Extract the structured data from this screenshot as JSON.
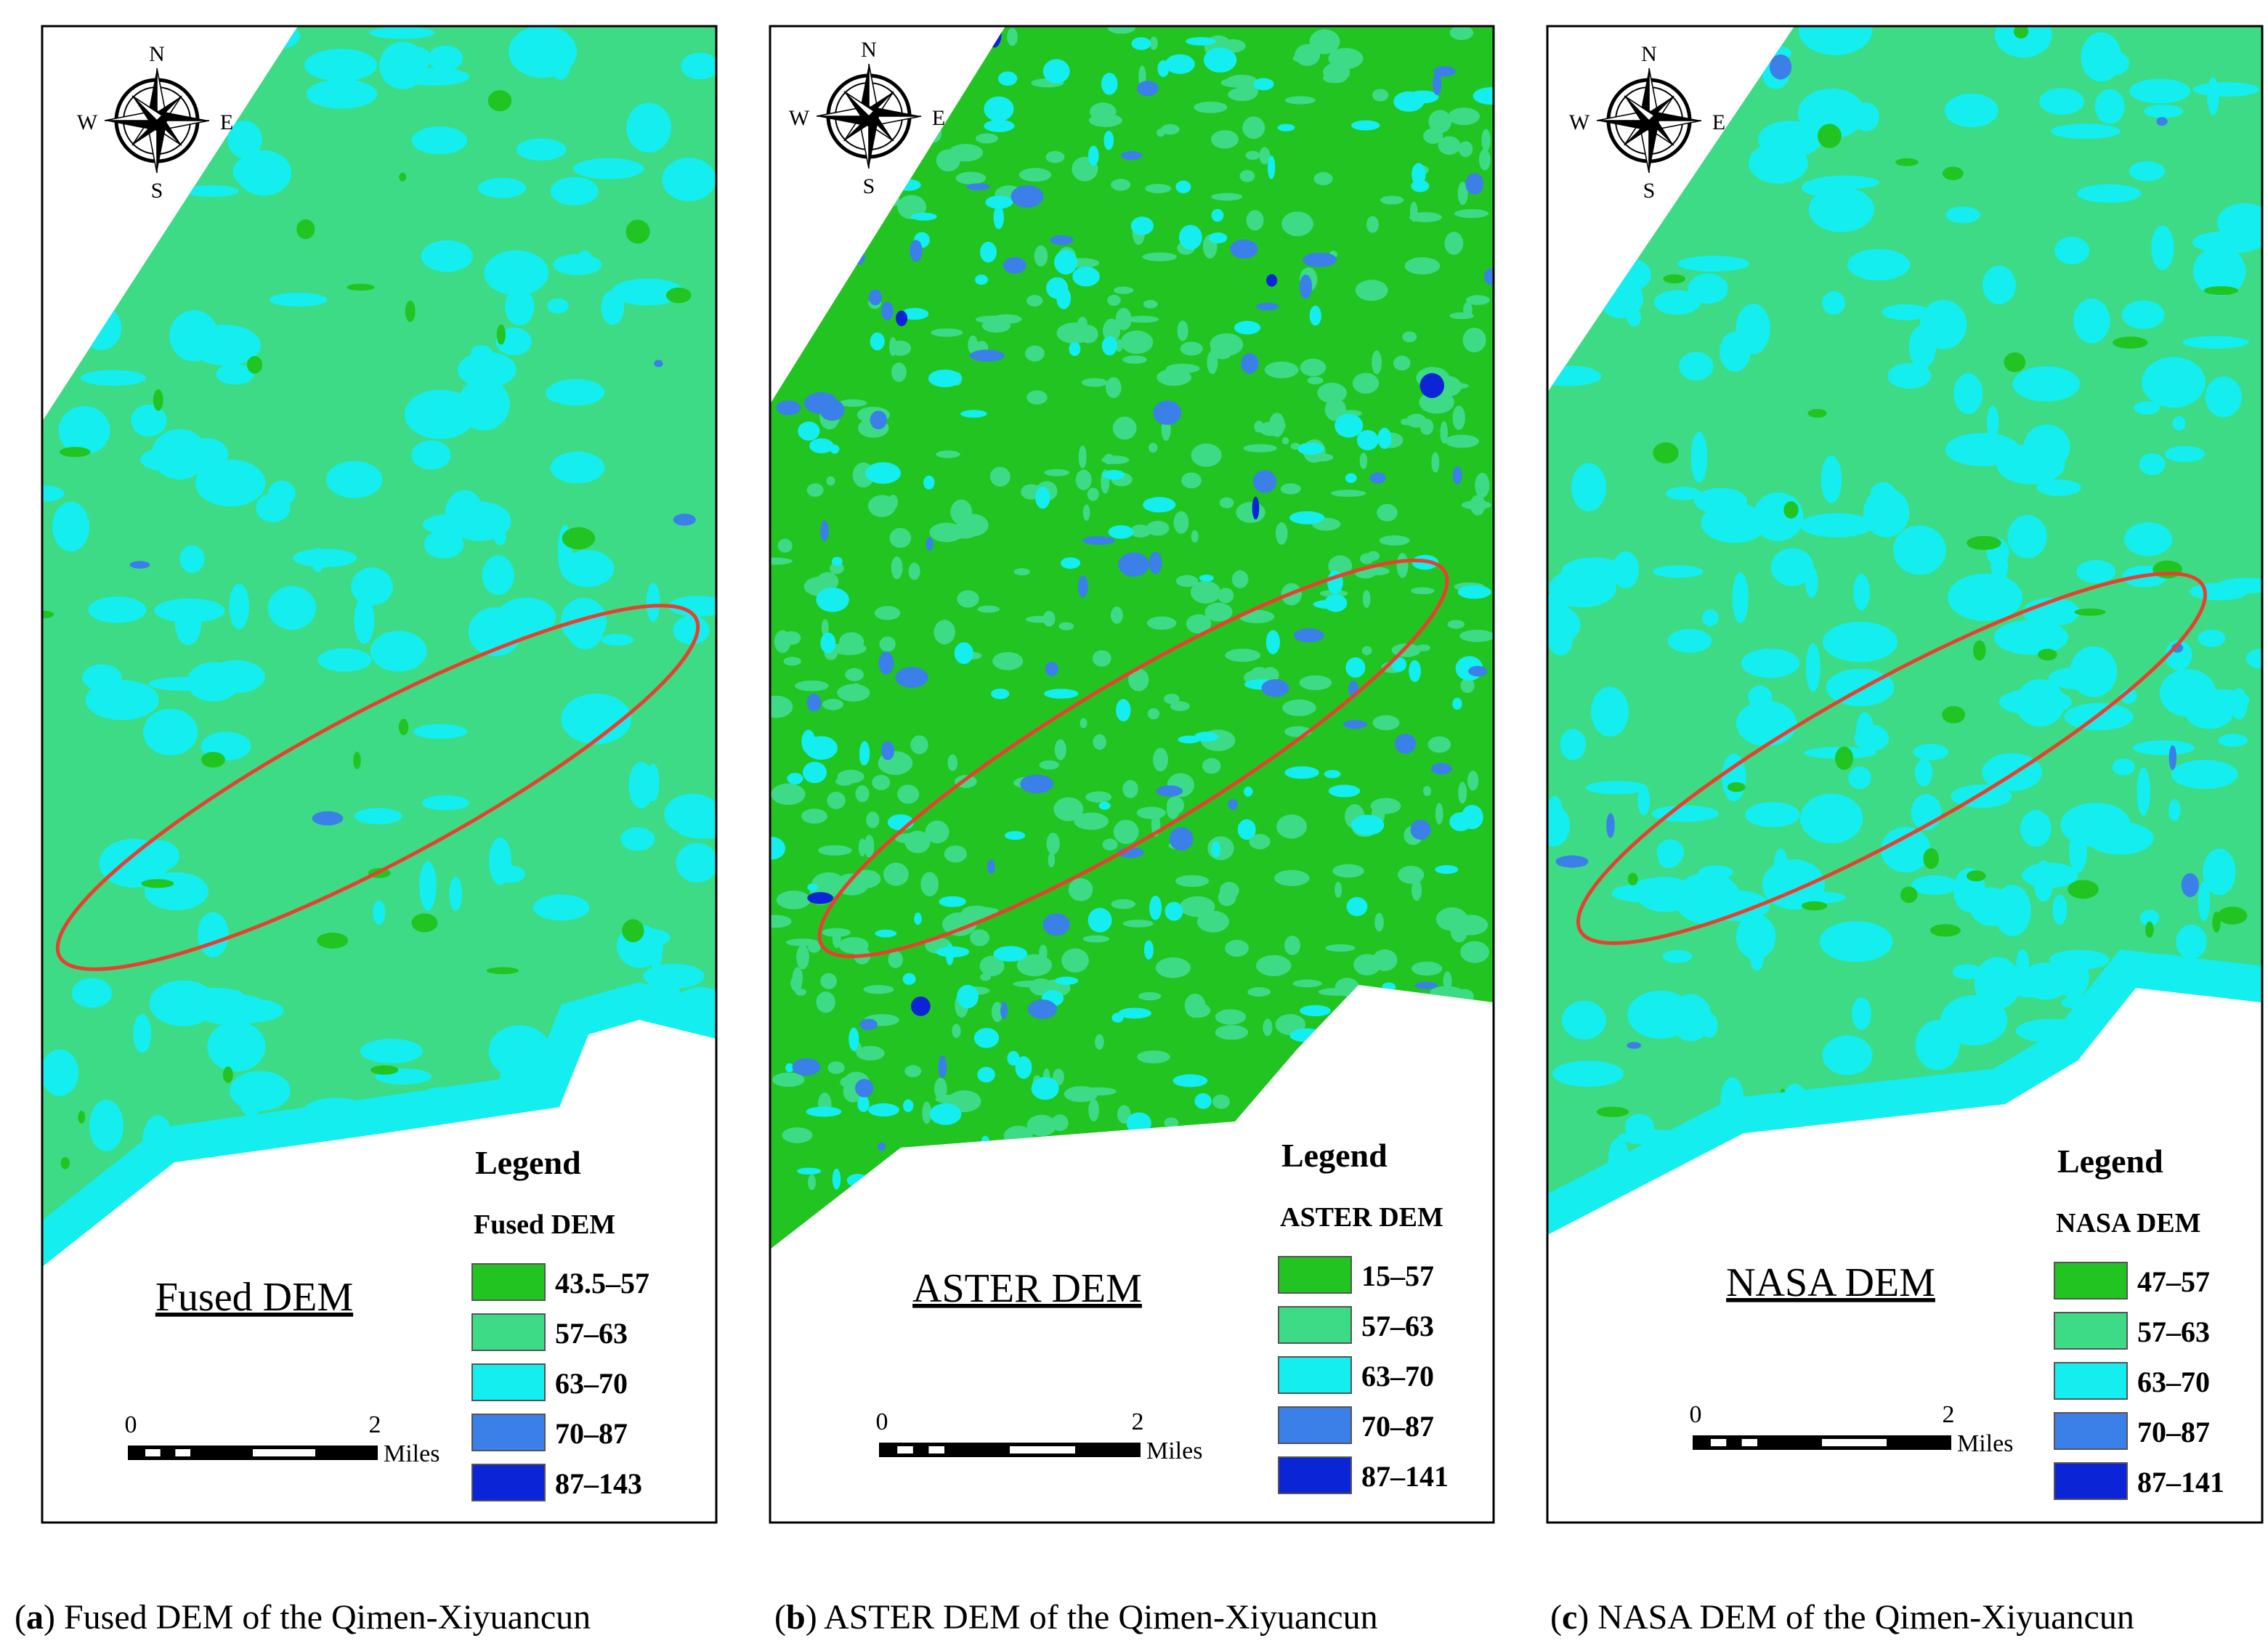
{
  "panels": [
    {
      "caption": {
        "open": "(",
        "letter": "a",
        "text": ") Fused DEM of the Qimen-Xiyuancun"
      },
      "map_label": "Fused DEM",
      "compass": {
        "north": "N",
        "east": "E",
        "south": "S",
        "west": "W"
      },
      "legend": {
        "title": "Legend",
        "subtitle": "Fused DEM",
        "items": [
          {
            "label": "43.5–57",
            "color": "#22c422"
          },
          {
            "label": "57–63",
            "color": "#3ddb85"
          },
          {
            "label": "63–70",
            "color": "#14eeee"
          },
          {
            "label": "70–87",
            "color": "#3a80e8"
          },
          {
            "label": "87–143",
            "color": "#0b24d6"
          }
        ]
      },
      "scale_bar": {
        "start": "0",
        "end": "2",
        "unit": "Miles"
      }
    },
    {
      "caption": {
        "open": "(",
        "letter": "b",
        "text": ") ASTER DEM of the Qimen-Xiyuancun"
      },
      "map_label": "ASTER DEM",
      "compass": {
        "north": "N",
        "east": "E",
        "south": "S",
        "west": "W"
      },
      "legend": {
        "title": "Legend",
        "subtitle": "ASTER DEM",
        "items": [
          {
            "label": "15–57",
            "color": "#22c422"
          },
          {
            "label": "57–63",
            "color": "#3ddb85"
          },
          {
            "label": "63–70",
            "color": "#14eeee"
          },
          {
            "label": "70–87",
            "color": "#3a80e8"
          },
          {
            "label": "87–141",
            "color": "#0b24d6"
          }
        ]
      },
      "scale_bar": {
        "start": "0",
        "end": "2",
        "unit": "Miles"
      }
    },
    {
      "caption": {
        "open": "(",
        "letter": "c",
        "text": ") NASA DEM of the Qimen-Xiyuancun"
      },
      "map_label": "NASA DEM",
      "compass": {
        "north": "N",
        "east": "E",
        "south": "S",
        "west": "W"
      },
      "legend": {
        "title": "Legend",
        "subtitle": "NASA DEM",
        "items": [
          {
            "label": "47–57",
            "color": "#22c422"
          },
          {
            "label": "57–63",
            "color": "#3ddb85"
          },
          {
            "label": "63–70",
            "color": "#14eeee"
          },
          {
            "label": "70–87",
            "color": "#3a80e8"
          },
          {
            "label": "87–141",
            "color": "#0b24d6"
          }
        ]
      },
      "scale_bar": {
        "start": "0",
        "end": "2",
        "unit": "Miles"
      }
    }
  ]
}
